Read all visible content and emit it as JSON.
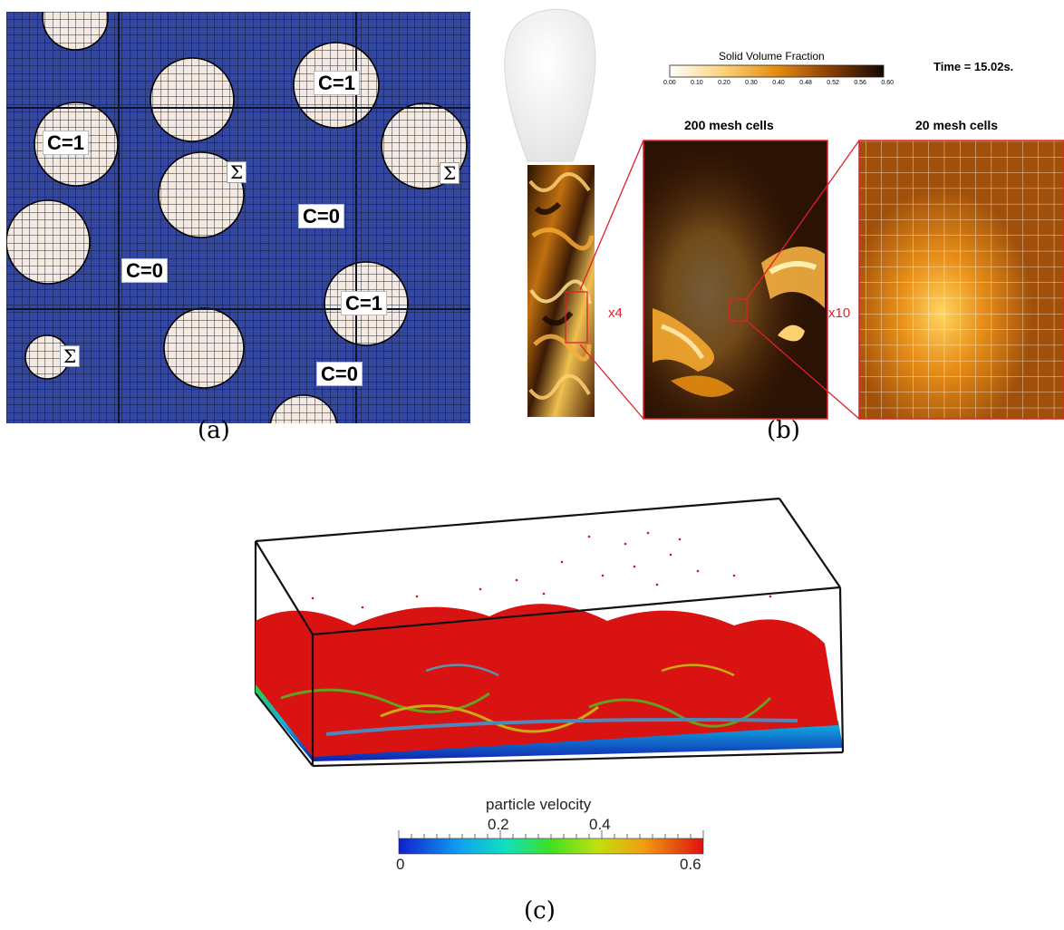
{
  "panel_a": {
    "caption": "(a)",
    "labels": {
      "c1_top": "C=1",
      "c1_left": "C=1",
      "c1_right": "C=1",
      "c0_mid": "C=0",
      "c0_left": "C=0",
      "c0_bottom": "C=0",
      "sigma_1": "Σ",
      "sigma_2": "Σ",
      "sigma_3": "Σ"
    },
    "colors": {
      "fluid": "#3447a0",
      "particle": "#f3e9e1",
      "grid": "#0d1526"
    }
  },
  "panel_b": {
    "caption": "(b)",
    "colorbar_title": "Solid Volume Fraction",
    "colorbar_ticks": [
      "0.00",
      "0.10",
      "0.20",
      "0.30",
      "0.40",
      "0.48",
      "0.52",
      "0.56",
      "0.60"
    ],
    "time_label": "Time = 15.02s.",
    "view1_title": "200 mesh cells",
    "view2_title": "20 mesh cells",
    "zoom1": "x4",
    "zoom2": "x10",
    "colors": {
      "zoom_frame": "#e0202a",
      "low": "#ffffff",
      "mid": "#f0a020",
      "high": "#1a0d05"
    }
  },
  "panel_c": {
    "caption": "(c)",
    "colorbar_title": "particle velocity",
    "colorbar_ticks_top": [
      "0.2",
      "0.4"
    ],
    "colorbar_ticks_bottom": [
      "0",
      "0.6"
    ],
    "colors": {
      "high": "#e01010",
      "mid": "#40d020",
      "low": "#1020c0"
    }
  }
}
